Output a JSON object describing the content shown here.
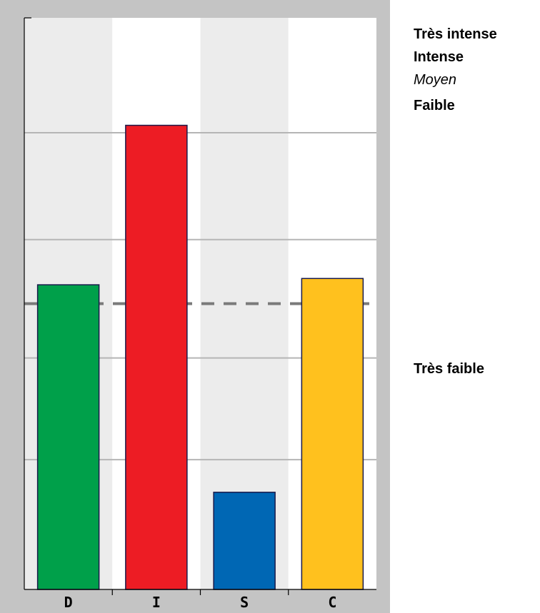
{
  "chart_data": {
    "type": "bar",
    "categories": [
      "D",
      "I",
      "S",
      "C"
    ],
    "values": [
      53.3,
      81.2,
      17.0,
      54.4
    ],
    "colors": [
      "#00a04a",
      "#ed1c24",
      "#0067b4",
      "#ffc11e"
    ],
    "ylim": [
      0,
      100
    ],
    "reference_line": 50,
    "column_shading": [
      "#ececec",
      "#ffffff",
      "#ececec",
      "#ffffff"
    ],
    "frame_color": "#c4c4c4",
    "level_labels": [
      {
        "label": "Très intense",
        "value": 97,
        "style": "bold"
      },
      {
        "label": "Intense",
        "value": 93,
        "style": "bold"
      },
      {
        "label": "Moyen",
        "value": 89,
        "style": "italic"
      },
      {
        "label": "Faible",
        "value": 84.5,
        "style": "bold"
      },
      {
        "label": "Très faible",
        "value": 38.5,
        "style": "bold"
      }
    ],
    "gridlines": [
      79.9,
      61.2,
      40.5,
      22.7
    ],
    "grid": true,
    "legend": "none"
  }
}
